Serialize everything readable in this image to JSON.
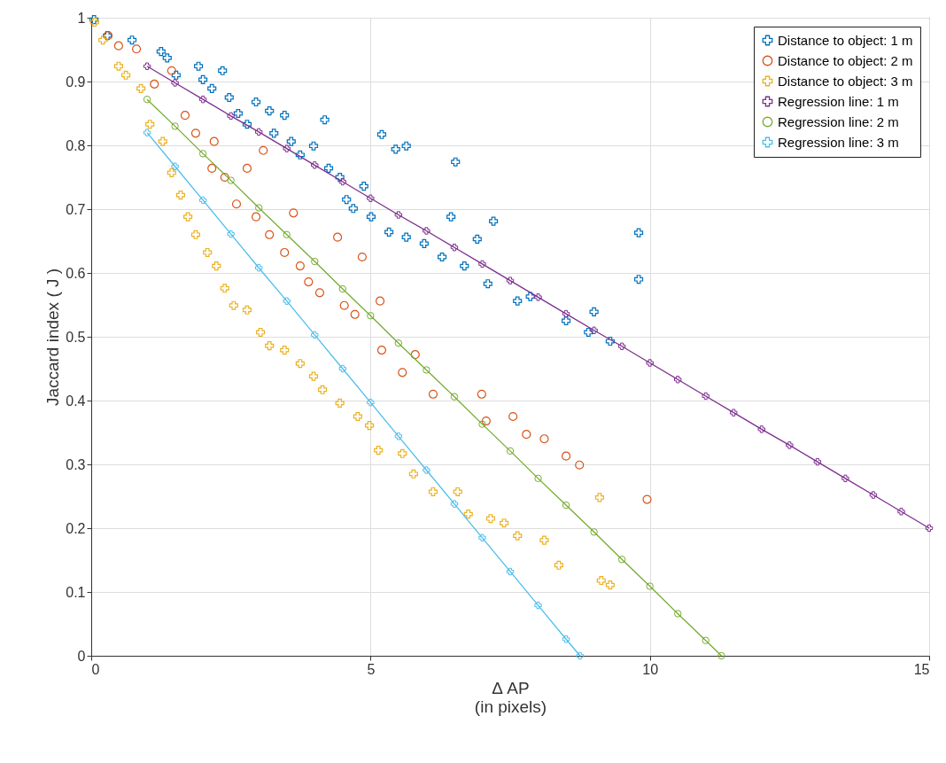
{
  "chart_data": {
    "type": "scatter",
    "xlabel": "Δ AP\n(in pixels)",
    "ylabel": "Jaccard index ( J )",
    "xlim": [
      0,
      15
    ],
    "ylim": [
      0,
      1
    ],
    "xticks": [
      0,
      5,
      10,
      15
    ],
    "yticks": [
      0,
      0.1,
      0.2,
      0.3,
      0.4,
      0.5,
      0.6,
      0.7,
      0.8,
      0.9,
      1
    ],
    "grid": true,
    "legend": "top right",
    "series": [
      {
        "name": "Distance to object: 1 m",
        "color": "#0072bd",
        "marker": "cross",
        "x": [
          0.05,
          0.29,
          0.73,
          1.25,
          1.36,
          1.52,
          1.92,
          2.0,
          2.16,
          2.35,
          2.47,
          2.63,
          2.79,
          2.95,
          3.19,
          3.27,
          3.46,
          3.58,
          3.74,
          3.98,
          4.18,
          4.25,
          4.45,
          4.57,
          4.69,
          4.88,
          5.01,
          5.2,
          5.33,
          5.45,
          5.64,
          5.64,
          5.96,
          6.28,
          6.52,
          6.44,
          6.68,
          6.91,
          7.1,
          7.2,
          7.63,
          7.86,
          8.5,
          8.9,
          9.0,
          9.29,
          9.8,
          9.8
        ],
        "values": [
          0.997,
          0.972,
          0.965,
          0.947,
          0.937,
          0.91,
          0.924,
          0.903,
          0.889,
          0.917,
          0.875,
          0.85,
          0.833,
          0.868,
          0.854,
          0.819,
          0.847,
          0.806,
          0.785,
          0.799,
          0.84,
          0.764,
          0.75,
          0.715,
          0.701,
          0.736,
          0.688,
          0.817,
          0.664,
          0.794,
          0.799,
          0.656,
          0.646,
          0.625,
          0.774,
          0.688,
          0.611,
          0.653,
          0.583,
          0.681,
          0.556,
          0.563,
          0.525,
          0.507,
          0.539,
          0.493,
          0.663,
          0.59
        ]
      },
      {
        "name": "Distance to object: 2 m",
        "color": "#d95319",
        "marker": "circle",
        "x": [
          0.3,
          0.49,
          0.81,
          1.13,
          1.44,
          1.68,
          1.87,
          2.2,
          2.16,
          2.39,
          2.6,
          2.79,
          2.95,
          3.08,
          3.19,
          3.46,
          3.62,
          3.74,
          3.89,
          4.09,
          4.41,
          4.53,
          4.72,
          4.85,
          5.17,
          5.2,
          5.57,
          5.8,
          6.12,
          6.99,
          7.07,
          7.55,
          7.79,
          8.11,
          8.5,
          8.74,
          9.95
        ],
        "values": [
          0.972,
          0.956,
          0.951,
          0.896,
          0.917,
          0.847,
          0.819,
          0.806,
          0.764,
          0.75,
          0.708,
          0.764,
          0.688,
          0.792,
          0.66,
          0.632,
          0.694,
          0.611,
          0.586,
          0.569,
          0.656,
          0.549,
          0.535,
          0.625,
          0.556,
          0.479,
          0.444,
          0.472,
          0.41,
          0.41,
          0.368,
          0.375,
          0.347,
          0.34,
          0.313,
          0.299,
          0.245
        ]
      },
      {
        "name": "Distance to object: 3 m",
        "color": "#edb120",
        "marker": "cross",
        "x": [
          0.06,
          0.21,
          0.49,
          0.62,
          0.89,
          1.05,
          1.28,
          1.44,
          1.6,
          1.73,
          1.87,
          2.08,
          2.24,
          2.39,
          2.55,
          2.79,
          3.03,
          3.19,
          3.46,
          3.74,
          3.98,
          4.14,
          4.45,
          4.77,
          4.98,
          5.14,
          5.57,
          5.77,
          6.12,
          6.56,
          6.75,
          7.15,
          7.39,
          7.63,
          8.11,
          8.37,
          9.1,
          9.13,
          9.29
        ],
        "values": [
          0.993,
          0.965,
          0.924,
          0.91,
          0.889,
          0.833,
          0.806,
          0.757,
          0.722,
          0.688,
          0.66,
          0.632,
          0.611,
          0.576,
          0.549,
          0.542,
          0.507,
          0.486,
          0.479,
          0.458,
          0.438,
          0.417,
          0.396,
          0.375,
          0.361,
          0.322,
          0.317,
          0.285,
          0.257,
          0.257,
          0.222,
          0.215,
          0.208,
          0.188,
          0.181,
          0.142,
          0.248,
          0.118,
          0.111
        ]
      },
      {
        "name": "Regression line: 1 m",
        "type": "line",
        "color": "#7e2f8e",
        "marker": "cross",
        "line_style": "solid",
        "x": [
          1,
          1.5,
          2,
          2.5,
          3,
          3.5,
          4,
          4.5,
          5,
          5.5,
          6,
          6.5,
          7,
          7.5,
          8,
          8.5,
          9,
          9.5,
          10,
          10.5,
          11,
          11.5,
          12,
          12.5,
          13,
          13.5,
          14,
          14.5,
          15
        ],
        "values": [
          0.924,
          0.898,
          0.872,
          0.846,
          0.821,
          0.795,
          0.769,
          0.743,
          0.717,
          0.691,
          0.666,
          0.64,
          0.614,
          0.588,
          0.562,
          0.536,
          0.51,
          0.485,
          0.459,
          0.433,
          0.407,
          0.381,
          0.355,
          0.33,
          0.304,
          0.278,
          0.252,
          0.226,
          0.2
        ]
      },
      {
        "name": "Regression line: 2 m",
        "type": "line",
        "color": "#77ac30",
        "marker": "circle",
        "line_style": "solid",
        "x": [
          1,
          1.5,
          2,
          2.5,
          3,
          3.5,
          4,
          4.5,
          5,
          5.5,
          6,
          6.5,
          7,
          7.5,
          8,
          8.5,
          9,
          9.5,
          10,
          10.5,
          11,
          11.28
        ],
        "values": [
          0.872,
          0.83,
          0.787,
          0.745,
          0.702,
          0.66,
          0.618,
          0.575,
          0.533,
          0.49,
          0.448,
          0.406,
          0.363,
          0.321,
          0.278,
          0.236,
          0.194,
          0.151,
          0.109,
          0.066,
          0.024,
          0
        ]
      },
      {
        "name": "Regression line: 3 m",
        "type": "line",
        "color": "#4dbeee",
        "marker": "cross",
        "line_style": "solid",
        "x": [
          1,
          1.5,
          2,
          2.5,
          3,
          3.5,
          4,
          4.5,
          5,
          5.5,
          6,
          6.5,
          7,
          7.5,
          8,
          8.5,
          8.75
        ],
        "values": [
          0.82,
          0.767,
          0.714,
          0.661,
          0.608,
          0.556,
          0.503,
          0.45,
          0.397,
          0.344,
          0.291,
          0.238,
          0.185,
          0.132,
          0.079,
          0.026,
          0
        ]
      }
    ]
  }
}
